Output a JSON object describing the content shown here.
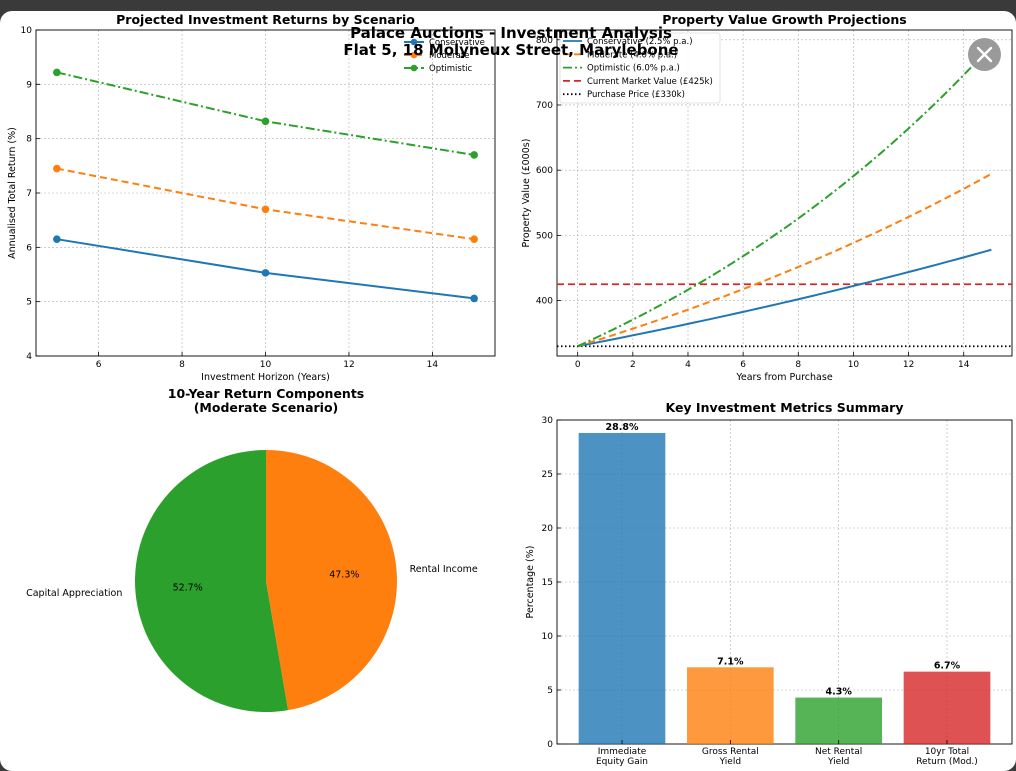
{
  "figure": {
    "title_line1": "Palace Auctions - Investment Analysis",
    "title_line2": "Flat 5, 18 Molyneux Street, Marylebone"
  },
  "viewer": {
    "close_icon": "close-icon"
  },
  "chart_data": [
    {
      "type": "line",
      "title": "Projected Investment Returns by Scenario",
      "xlabel": "Investment Horizon (Years)",
      "ylabel": "Annualised Total Return (%)",
      "x": [
        5,
        10,
        15
      ],
      "xlim": [
        4.5,
        15.5
      ],
      "ylim": [
        4,
        10
      ],
      "xticks": [
        "6",
        "8",
        "10",
        "12",
        "14"
      ],
      "yticks": [
        "4",
        "5",
        "6",
        "7",
        "8",
        "9",
        "10"
      ],
      "grid": true,
      "legend_position": "top-right",
      "series": [
        {
          "name": "Conservative",
          "values": [
            6.15,
            5.53,
            5.06
          ],
          "color": "#1f77b4",
          "dash": "solid"
        },
        {
          "name": "Moderate",
          "values": [
            7.45,
            6.7,
            6.15
          ],
          "color": "#ff7f0e",
          "dash": "dashed"
        },
        {
          "name": "Optimistic",
          "values": [
            9.22,
            8.32,
            7.7
          ],
          "color": "#2ca02c",
          "dash": "dashdot"
        }
      ]
    },
    {
      "type": "line",
      "title": "Property Value Growth Projections",
      "xlabel": "Years from Purchase",
      "ylabel": "Property Value (£000s)",
      "xlim": [
        -0.75,
        15.75
      ],
      "ylim": [
        315,
        815
      ],
      "xticks": [
        "0",
        "2",
        "4",
        "6",
        "8",
        "10",
        "12",
        "14"
      ],
      "yticks": [
        "400",
        "500",
        "600",
        "700",
        "800"
      ],
      "grid": true,
      "legend_position": "top-left",
      "series": [
        {
          "name": "Conservative (2.5% p.a.)",
          "base": 330,
          "rate": 0.025,
          "years": 15,
          "color": "#1f77b4",
          "dash": "solid"
        },
        {
          "name": "Moderate (4.0% p.a.)",
          "base": 330,
          "rate": 0.04,
          "years": 15,
          "color": "#ff7f0e",
          "dash": "dashed"
        },
        {
          "name": "Optimistic (6.0% p.a.)",
          "base": 330,
          "rate": 0.06,
          "years": 15,
          "color": "#2ca02c",
          "dash": "dashdot"
        }
      ],
      "hlines": [
        {
          "name": "Current Market Value (£425k)",
          "value": 425,
          "color": "#d62728",
          "dash": "dashed"
        },
        {
          "name": "Purchase Price (£330k)",
          "value": 330,
          "color": "#000000",
          "dash": "dotted"
        }
      ]
    },
    {
      "type": "pie",
      "title_line1": "10-Year Return Components",
      "title_line2": "(Moderate Scenario)",
      "slices": [
        {
          "label": "Capital Appreciation",
          "value": 52.7,
          "pct_label": "52.7%",
          "color": "#2ca02c"
        },
        {
          "label": "Rental Income",
          "value": 47.3,
          "pct_label": "47.3%",
          "color": "#ff7f0e"
        }
      ]
    },
    {
      "type": "bar",
      "title": "Key Investment Metrics Summary",
      "ylabel": "Percentage (%)",
      "ylim": [
        0,
        30
      ],
      "yticks": [
        "0",
        "5",
        "10",
        "15",
        "20",
        "25",
        "30"
      ],
      "grid": true,
      "bars": [
        {
          "line1": "Immediate",
          "line2": "Equity Gain",
          "value": 28.8,
          "label": "28.8%",
          "color": "#1f77b4"
        },
        {
          "line1": "Gross Rental",
          "line2": "Yield",
          "value": 7.1,
          "label": "7.1%",
          "color": "#ff7f0e"
        },
        {
          "line1": "Net Rental",
          "line2": "Yield",
          "value": 4.3,
          "label": "4.3%",
          "color": "#2ca02c"
        },
        {
          "line1": "10yr Total",
          "line2": "Return (Mod.)",
          "value": 6.7,
          "label": "6.7%",
          "color": "#d62728"
        }
      ]
    }
  ]
}
